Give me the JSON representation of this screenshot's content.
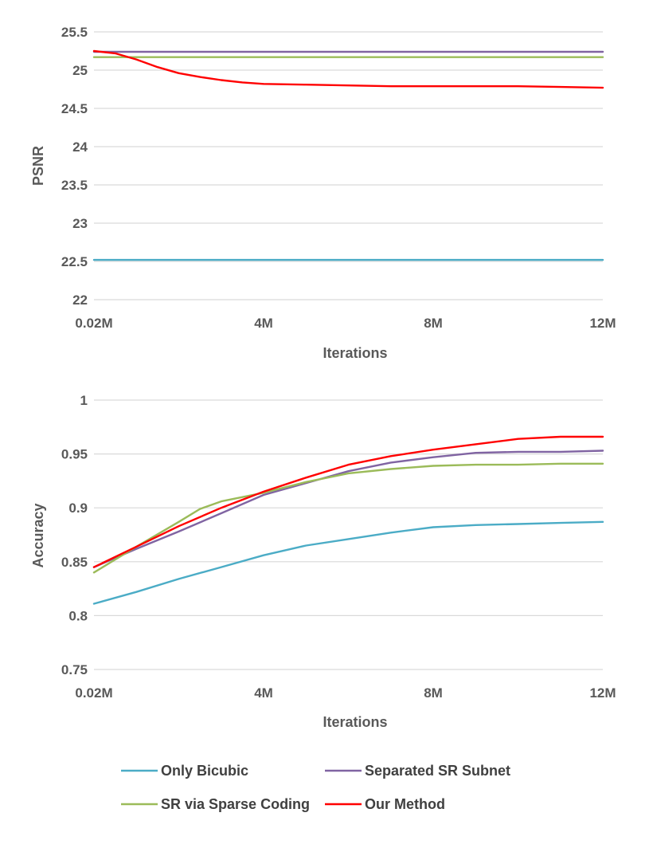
{
  "colors": {
    "Only Bicubic": "#4bacc6",
    "Separated SR Subnet": "#8064a2",
    "SR via Sparse Coding": "#9bbb59",
    "Our Method": "#ff0000"
  },
  "legend": {
    "items": [
      "Only Bicubic",
      "Separated SR Subnet",
      "SR via Sparse Coding",
      "Our Method"
    ],
    "placement": "bottom"
  },
  "chart_data": [
    {
      "type": "line",
      "title": "",
      "xlabel": "Iterations",
      "ylabel": "PSNR",
      "xlim": [
        0,
        12
      ],
      "x_ticks": [
        0,
        4,
        8,
        12
      ],
      "x_tick_labels": [
        "0.02M",
        "4M",
        "8M",
        "12M"
      ],
      "ylim": [
        22,
        25.5
      ],
      "y_ticks": [
        22,
        22.5,
        23,
        23.5,
        24,
        24.5,
        25,
        25.5
      ],
      "y_tick_labels": [
        "22",
        "22.5",
        "23",
        "23.5",
        "24",
        "24.5",
        "25",
        "25.5"
      ],
      "grid": true,
      "series": [
        {
          "name": "Only Bicubic",
          "x": [
            0,
            12
          ],
          "y": [
            22.52,
            22.52
          ]
        },
        {
          "name": "Separated SR Subnet",
          "x": [
            0,
            12
          ],
          "y": [
            25.24,
            25.24
          ]
        },
        {
          "name": "SR via Sparse Coding",
          "x": [
            0,
            12
          ],
          "y": [
            25.17,
            25.17
          ]
        },
        {
          "name": "Our Method",
          "x": [
            0,
            0.5,
            1,
            1.5,
            2,
            2.5,
            3,
            3.5,
            4,
            5,
            6,
            7,
            8,
            9,
            10,
            11,
            12
          ],
          "y": [
            25.25,
            25.22,
            25.14,
            25.04,
            24.96,
            24.91,
            24.87,
            24.84,
            24.82,
            24.81,
            24.8,
            24.79,
            24.79,
            24.79,
            24.79,
            24.78,
            24.77
          ]
        }
      ]
    },
    {
      "type": "line",
      "title": "",
      "xlabel": "Iterations",
      "ylabel": "Accuracy",
      "xlim": [
        0,
        12
      ],
      "x_ticks": [
        0,
        4,
        8,
        12
      ],
      "x_tick_labels": [
        "0.02M",
        "4M",
        "8M",
        "12M"
      ],
      "ylim": [
        0.75,
        1
      ],
      "y_ticks": [
        0.75,
        0.8,
        0.85,
        0.9,
        0.95,
        1
      ],
      "y_tick_labels": [
        "0.75",
        "0.8",
        "0.85",
        "0.9",
        "0.95",
        "1"
      ],
      "grid": true,
      "series": [
        {
          "name": "Only Bicubic",
          "x": [
            0,
            1,
            2,
            3,
            4,
            5,
            6,
            7,
            8,
            9,
            10,
            11,
            12
          ],
          "y": [
            0.811,
            0.822,
            0.834,
            0.845,
            0.856,
            0.865,
            0.871,
            0.877,
            0.882,
            0.884,
            0.885,
            0.886,
            0.887
          ]
        },
        {
          "name": "Separated SR Subnet",
          "x": [
            0,
            1,
            2,
            3,
            4,
            5,
            6,
            7,
            8,
            9,
            10,
            11,
            12
          ],
          "y": [
            0.845,
            0.862,
            0.878,
            0.895,
            0.912,
            0.923,
            0.934,
            0.942,
            0.947,
            0.951,
            0.952,
            0.952,
            0.953
          ]
        },
        {
          "name": "SR via Sparse Coding",
          "x": [
            0,
            1,
            2,
            2.5,
            3,
            3.5,
            4,
            5,
            6,
            7,
            8,
            9,
            10,
            11,
            12
          ],
          "y": [
            0.84,
            0.864,
            0.887,
            0.899,
            0.906,
            0.91,
            0.914,
            0.924,
            0.932,
            0.936,
            0.939,
            0.94,
            0.94,
            0.941,
            0.941
          ]
        },
        {
          "name": "Our Method",
          "x": [
            0,
            1,
            2,
            3,
            4,
            5,
            6,
            7,
            8,
            9,
            10,
            11,
            12
          ],
          "y": [
            0.845,
            0.864,
            0.883,
            0.9,
            0.915,
            0.928,
            0.94,
            0.948,
            0.954,
            0.959,
            0.964,
            0.966,
            0.966
          ]
        }
      ]
    }
  ]
}
